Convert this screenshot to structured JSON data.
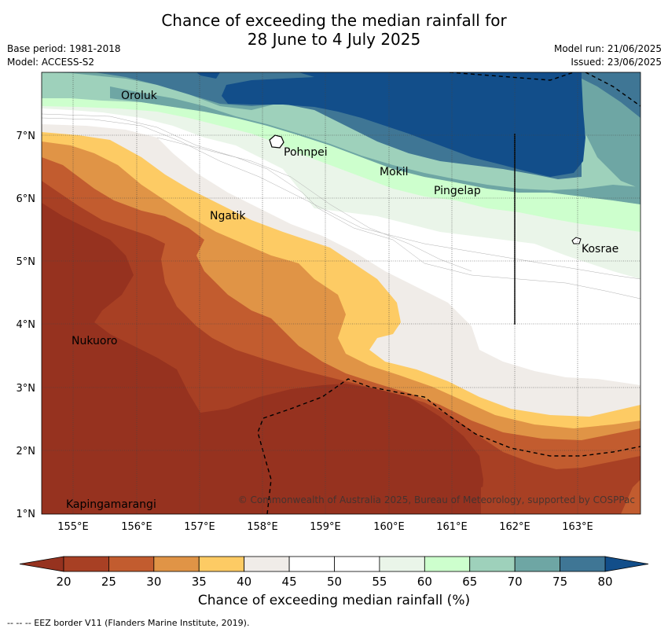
{
  "header": {
    "title_line1": "Chance of exceeding the median rainfall for",
    "title_line2": "28 June to 4 July 2025",
    "base_period": "Base period: 1981-2018",
    "model": "Model: ACCESS-S2",
    "model_run": "Model run: 21/06/2025",
    "issued": "Issued: 23/06/2025"
  },
  "map": {
    "lon_labels": [
      "155°E",
      "156°E",
      "157°E",
      "158°E",
      "159°E",
      "160°E",
      "161°E",
      "162°E",
      "163°E"
    ],
    "lat_labels": [
      "7°N",
      "6°N",
      "5°N",
      "4°N",
      "3°N",
      "2°N",
      "1°N"
    ],
    "places": [
      {
        "name": "Oroluk"
      },
      {
        "name": "Pohnpei"
      },
      {
        "name": "Mokil"
      },
      {
        "name": "Pingelap"
      },
      {
        "name": "Ngatik"
      },
      {
        "name": "Kosrae"
      },
      {
        "name": "Nukuoro"
      },
      {
        "name": "Kapingamarangi"
      }
    ],
    "copyright": "© Commonwealth of Australia 2025, Bureau of Meteorology, supported by COSPPac"
  },
  "colorbar": {
    "ticks": [
      "20",
      "25",
      "30",
      "35",
      "40",
      "45",
      "50",
      "55",
      "60",
      "65",
      "70",
      "75",
      "80"
    ],
    "colors": [
      "#a84024",
      "#c25c2f",
      "#e09446",
      "#fdcb64",
      "#f0ece8",
      "#ffffff",
      "#ffffff",
      "#eaf5e9",
      "#cdffcd",
      "#9ed1bb",
      "#6ea6a4",
      "#3f7695",
      "#124e8a"
    ],
    "under_color": "#96321f",
    "over_color": "#124e8a",
    "label": "Chance of exceeding median rainfall (%)"
  },
  "legend_note": "--  --  -- EEZ border V11 (Flanders Marine Institute, 2019)."
}
